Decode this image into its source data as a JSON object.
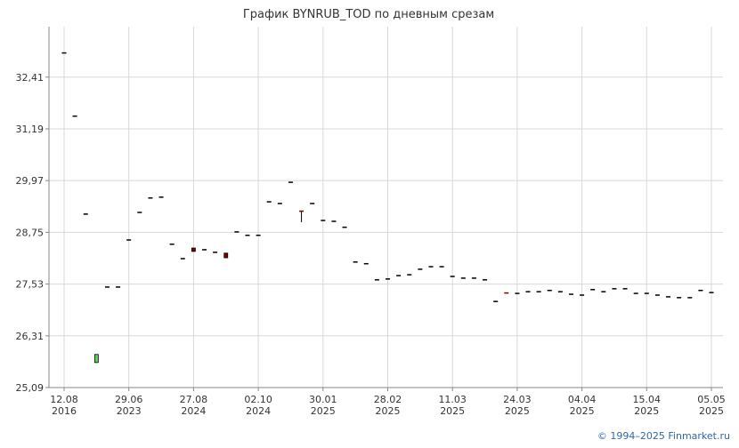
{
  "chart_data": {
    "type": "candlestick",
    "title": "График BYNRUB_TOD по дневным срезам",
    "categories": [
      [
        "12.08",
        "2016"
      ],
      null,
      null,
      null,
      null,
      null,
      [
        "29.06",
        "2023"
      ],
      null,
      null,
      null,
      null,
      null,
      [
        "27.08",
        "2024"
      ],
      null,
      null,
      null,
      null,
      null,
      [
        "02.10",
        "2024"
      ],
      null,
      null,
      null,
      null,
      null,
      [
        "30.01",
        "2025"
      ],
      null,
      null,
      null,
      null,
      null,
      [
        "28.02",
        "2025"
      ],
      null,
      null,
      null,
      null,
      null,
      [
        "11.03",
        "2025"
      ],
      null,
      null,
      null,
      null,
      null,
      [
        "24.03",
        "2025"
      ],
      null,
      null,
      null,
      null,
      null,
      [
        "04.04",
        "2025"
      ],
      null,
      null,
      null,
      null,
      null,
      [
        "15.04",
        "2025"
      ],
      null,
      null,
      null,
      null,
      null,
      [
        "05.05",
        "2025"
      ]
    ],
    "open": [
      32.98,
      31.49,
      29.18,
      25.68,
      27.46,
      27.46,
      28.57,
      29.22,
      29.56,
      29.58,
      28.47,
      28.13,
      28.38,
      28.34,
      28.28,
      28.26,
      28.76,
      28.68,
      28.68,
      29.47,
      29.43,
      29.93,
      29.25,
      29.43,
      29.03,
      29.01,
      28.87,
      28.05,
      28.01,
      27.63,
      27.65,
      27.73,
      27.75,
      27.88,
      27.94,
      27.94,
      27.71,
      27.67,
      27.67,
      27.63,
      27.12,
      27.32,
      27.31,
      27.35,
      27.35,
      27.38,
      27.35,
      27.29,
      27.27,
      27.4,
      27.35,
      27.42,
      27.42,
      27.31,
      27.31,
      27.27,
      27.23,
      27.21,
      27.21,
      27.38,
      27.33
    ],
    "high": [
      32.98,
      31.49,
      29.18,
      25.87,
      27.46,
      27.46,
      28.57,
      29.22,
      29.56,
      29.58,
      28.47,
      28.13,
      28.38,
      28.34,
      28.28,
      28.26,
      28.76,
      28.68,
      28.68,
      29.47,
      29.43,
      29.93,
      29.26,
      29.43,
      29.03,
      29.01,
      28.87,
      28.05,
      28.01,
      27.63,
      27.65,
      27.73,
      27.75,
      27.88,
      27.94,
      27.94,
      27.71,
      27.67,
      27.67,
      27.63,
      27.12,
      27.32,
      27.31,
      27.35,
      27.35,
      27.38,
      27.35,
      27.29,
      27.27,
      27.4,
      27.35,
      27.42,
      27.42,
      27.31,
      27.31,
      27.27,
      27.23,
      27.21,
      27.21,
      27.38,
      27.33
    ],
    "low": [
      32.98,
      31.49,
      29.18,
      25.68,
      27.46,
      27.46,
      28.57,
      29.22,
      29.56,
      29.58,
      28.47,
      28.13,
      28.3,
      28.34,
      28.28,
      28.15,
      28.76,
      28.68,
      28.68,
      29.47,
      29.43,
      29.93,
      28.99,
      29.43,
      29.03,
      29.01,
      28.87,
      28.05,
      28.01,
      27.63,
      27.65,
      27.73,
      27.75,
      27.88,
      27.94,
      27.94,
      27.71,
      27.67,
      27.67,
      27.63,
      27.12,
      27.31,
      27.31,
      27.35,
      27.35,
      27.38,
      27.35,
      27.29,
      27.27,
      27.4,
      27.35,
      27.42,
      27.42,
      27.31,
      27.31,
      27.27,
      27.23,
      27.21,
      27.21,
      27.38,
      27.33
    ],
    "close": [
      32.98,
      31.49,
      29.18,
      25.87,
      27.46,
      27.46,
      28.57,
      29.22,
      29.56,
      29.58,
      28.47,
      28.13,
      28.3,
      28.34,
      28.28,
      28.15,
      28.76,
      28.68,
      28.68,
      29.47,
      29.43,
      29.93,
      29.24,
      29.43,
      29.03,
      29.01,
      28.87,
      28.05,
      28.01,
      27.63,
      27.65,
      27.73,
      27.75,
      27.88,
      27.94,
      27.94,
      27.71,
      27.67,
      27.67,
      27.63,
      27.12,
      27.31,
      27.31,
      27.35,
      27.35,
      27.38,
      27.35,
      27.29,
      27.27,
      27.4,
      27.35,
      27.42,
      27.42,
      27.31,
      27.31,
      27.27,
      27.23,
      27.21,
      27.21,
      27.38,
      27.33
    ],
    "up_color": "#66cc66",
    "down_color": "#800000",
    "flat_color": "#000000",
    "ylim": [
      25.09,
      33.6
    ],
    "yticks": [
      {
        "value": 25.09,
        "label": "25,09"
      },
      {
        "value": 26.31,
        "label": "26,31"
      },
      {
        "value": 27.53,
        "label": "27,53"
      },
      {
        "value": 28.75,
        "label": "28,75"
      },
      {
        "value": 29.97,
        "label": "29,97"
      },
      {
        "value": 31.19,
        "label": "31,19"
      },
      {
        "value": 32.41,
        "label": "32,41"
      }
    ],
    "grid": true
  },
  "footer": "© 1994–2025 Finmarket.ru"
}
